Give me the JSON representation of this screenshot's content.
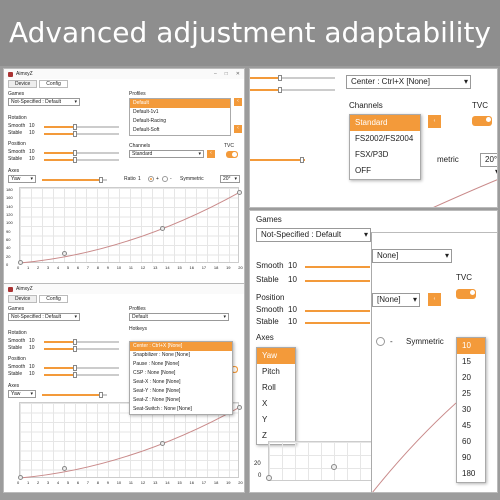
{
  "banner": {
    "title": "Advanced adjustment adaptability"
  },
  "app": {
    "name": "AimxyZ",
    "tab_device": "Device",
    "tab_config": "Config",
    "min": "–",
    "max": "□",
    "close": "✕"
  },
  "labels": {
    "games": "Games",
    "profiles": "Profiles",
    "rotation": "Rotation",
    "position": "Position",
    "channels": "Channels",
    "tvc": "TVC",
    "axes": "Axes",
    "hotkeys": "Hotkeys",
    "smooth": "Smooth",
    "stable": "Stable",
    "ratio": "Ratio",
    "symmetric": "Symmetric",
    "plus": "+",
    "minus": "-"
  },
  "values": {
    "game": "Not-Specified : Default",
    "profile_sel": "Default",
    "channel": "Standard",
    "axis": "Yaw",
    "ratio": "1",
    "sym": "20°",
    "rot_smooth": "10",
    "rot_stable": "10",
    "pos_smooth": "10",
    "pos_stable": "10",
    "hotkey_center": "Center : Ctrl+X [None]",
    "partial_none": "[None]",
    "partial_20": "20°",
    "partial_metric": "metric",
    "partial_none2": "None]"
  },
  "profiles": [
    "Default",
    "Default-1v1",
    "Default-Racing",
    "Default-Soft"
  ],
  "hotkeys": [
    "Center : Ctrl+X [None]",
    "Snapbilizer : None [None]",
    "Pause : None [None]",
    "CSP : None [None]",
    "Seat-X : None [None]",
    "Seat-Y : None [None]",
    "Seat-Z : None [None]",
    "Seat-Switch : None [None]"
  ],
  "channels": [
    "Standard",
    "FS2002/FS2004",
    "FSX/P3D",
    "OFF"
  ],
  "axes_list": [
    "Yaw",
    "Pitch",
    "Roll",
    "X",
    "Y",
    "Z"
  ],
  "sym_list": [
    "10",
    "15",
    "20",
    "25",
    "30",
    "45",
    "60",
    "90",
    "180"
  ],
  "axis_y": [
    "180",
    "160",
    "140",
    "120",
    "100",
    "90",
    "60",
    "40",
    "20",
    "0"
  ],
  "axis_x": [
    "0",
    "1",
    "2",
    "3",
    "4",
    "5",
    "6",
    "7",
    "8",
    "9",
    "10",
    "11",
    "12",
    "13",
    "14",
    "15",
    "16",
    "17",
    "18",
    "19",
    "20"
  ],
  "axis_y_zoom": [
    "20",
    "0"
  ],
  "colors": {
    "accent": "#f39a3a",
    "curve": "#c98a8a"
  }
}
